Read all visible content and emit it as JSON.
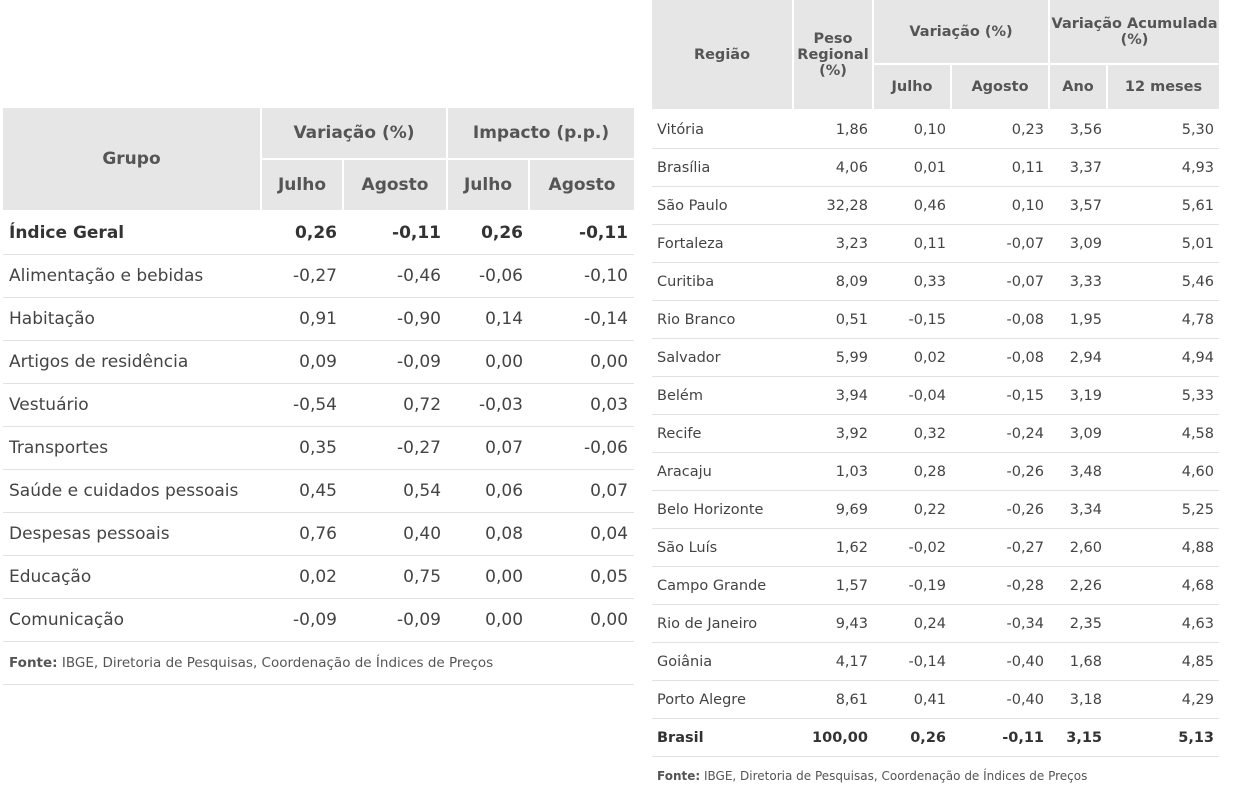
{
  "table_groups": {
    "headers": {
      "grupo": "Grupo",
      "variacao": "Variação (%)",
      "impacto": "Impacto (p.p.)",
      "julho": "Julho",
      "agosto": "Agosto"
    },
    "rows": [
      {
        "label": "Índice Geral",
        "var_jul": "0,26",
        "var_ago": "-0,11",
        "imp_jul": "0,26",
        "imp_ago": "-0,11"
      },
      {
        "label": "Alimentação e bebidas",
        "var_jul": "-0,27",
        "var_ago": "-0,46",
        "imp_jul": "-0,06",
        "imp_ago": "-0,10"
      },
      {
        "label": "Habitação",
        "var_jul": "0,91",
        "var_ago": "-0,90",
        "imp_jul": "0,14",
        "imp_ago": "-0,14"
      },
      {
        "label": "Artigos de residência",
        "var_jul": "0,09",
        "var_ago": "-0,09",
        "imp_jul": "0,00",
        "imp_ago": "0,00"
      },
      {
        "label": "Vestuário",
        "var_jul": "-0,54",
        "var_ago": "0,72",
        "imp_jul": "-0,03",
        "imp_ago": "0,03"
      },
      {
        "label": "Transportes",
        "var_jul": "0,35",
        "var_ago": "-0,27",
        "imp_jul": "0,07",
        "imp_ago": "-0,06"
      },
      {
        "label": "Saúde e cuidados pessoais",
        "var_jul": "0,45",
        "var_ago": "0,54",
        "imp_jul": "0,06",
        "imp_ago": "0,07"
      },
      {
        "label": "Despesas pessoais",
        "var_jul": "0,76",
        "var_ago": "0,40",
        "imp_jul": "0,08",
        "imp_ago": "0,04"
      },
      {
        "label": "Educação",
        "var_jul": "0,02",
        "var_ago": "0,75",
        "imp_jul": "0,00",
        "imp_ago": "0,05"
      },
      {
        "label": "Comunicação",
        "var_jul": "-0,09",
        "var_ago": "-0,09",
        "imp_jul": "0,00",
        "imp_ago": "0,00"
      }
    ],
    "source": {
      "label": "Fonte:",
      "text": " IBGE, Diretoria de Pesquisas, Coordenação de Índices de Preços"
    }
  },
  "table_regions": {
    "headers": {
      "regiao": "Região",
      "peso": "Peso Regional (%)",
      "variacao": "Variação (%)",
      "acumulada": "Variação Acumulada (%)",
      "julho": "Julho",
      "agosto": "Agosto",
      "ano": "Ano",
      "doze_meses": "12 meses"
    },
    "rows": [
      {
        "label": "Vitória",
        "peso": "1,86",
        "jul": "0,10",
        "ago": "0,23",
        "ano": "3,56",
        "m12": "5,30"
      },
      {
        "label": "Brasília",
        "peso": "4,06",
        "jul": "0,01",
        "ago": "0,11",
        "ano": "3,37",
        "m12": "4,93"
      },
      {
        "label": "São Paulo",
        "peso": "32,28",
        "jul": "0,46",
        "ago": "0,10",
        "ano": "3,57",
        "m12": "5,61"
      },
      {
        "label": "Fortaleza",
        "peso": "3,23",
        "jul": "0,11",
        "ago": "-0,07",
        "ano": "3,09",
        "m12": "5,01"
      },
      {
        "label": "Curitiba",
        "peso": "8,09",
        "jul": "0,33",
        "ago": "-0,07",
        "ano": "3,33",
        "m12": "5,46"
      },
      {
        "label": "Rio Branco",
        "peso": "0,51",
        "jul": "-0,15",
        "ago": "-0,08",
        "ano": "1,95",
        "m12": "4,78"
      },
      {
        "label": "Salvador",
        "peso": "5,99",
        "jul": "0,02",
        "ago": "-0,08",
        "ano": "2,94",
        "m12": "4,94"
      },
      {
        "label": "Belém",
        "peso": "3,94",
        "jul": "-0,04",
        "ago": "-0,15",
        "ano": "3,19",
        "m12": "5,33"
      },
      {
        "label": "Recife",
        "peso": "3,92",
        "jul": "0,32",
        "ago": "-0,24",
        "ano": "3,09",
        "m12": "4,58"
      },
      {
        "label": "Aracaju",
        "peso": "1,03",
        "jul": "0,28",
        "ago": "-0,26",
        "ano": "3,48",
        "m12": "4,60"
      },
      {
        "label": "Belo Horizonte",
        "peso": "9,69",
        "jul": "0,22",
        "ago": "-0,26",
        "ano": "3,34",
        "m12": "5,25"
      },
      {
        "label": "São Luís",
        "peso": "1,62",
        "jul": "-0,02",
        "ago": "-0,27",
        "ano": "2,60",
        "m12": "4,88"
      },
      {
        "label": "Campo Grande",
        "peso": "1,57",
        "jul": "-0,19",
        "ago": "-0,28",
        "ano": "2,26",
        "m12": "4,68"
      },
      {
        "label": "Rio de Janeiro",
        "peso": "9,43",
        "jul": "0,24",
        "ago": "-0,34",
        "ano": "2,35",
        "m12": "4,63"
      },
      {
        "label": "Goiânia",
        "peso": "4,17",
        "jul": "-0,14",
        "ago": "-0,40",
        "ano": "1,68",
        "m12": "4,85"
      },
      {
        "label": "Porto Alegre",
        "peso": "8,61",
        "jul": "0,41",
        "ago": "-0,40",
        "ano": "3,18",
        "m12": "4,29"
      },
      {
        "label": "Brasil",
        "peso": "100,00",
        "jul": "0,26",
        "ago": "-0,11",
        "ano": "3,15",
        "m12": "5,13"
      }
    ],
    "source": {
      "label": "Fonte:",
      "text": " IBGE, Diretoria de Pesquisas, Coordenação de Índices de Preços"
    }
  }
}
